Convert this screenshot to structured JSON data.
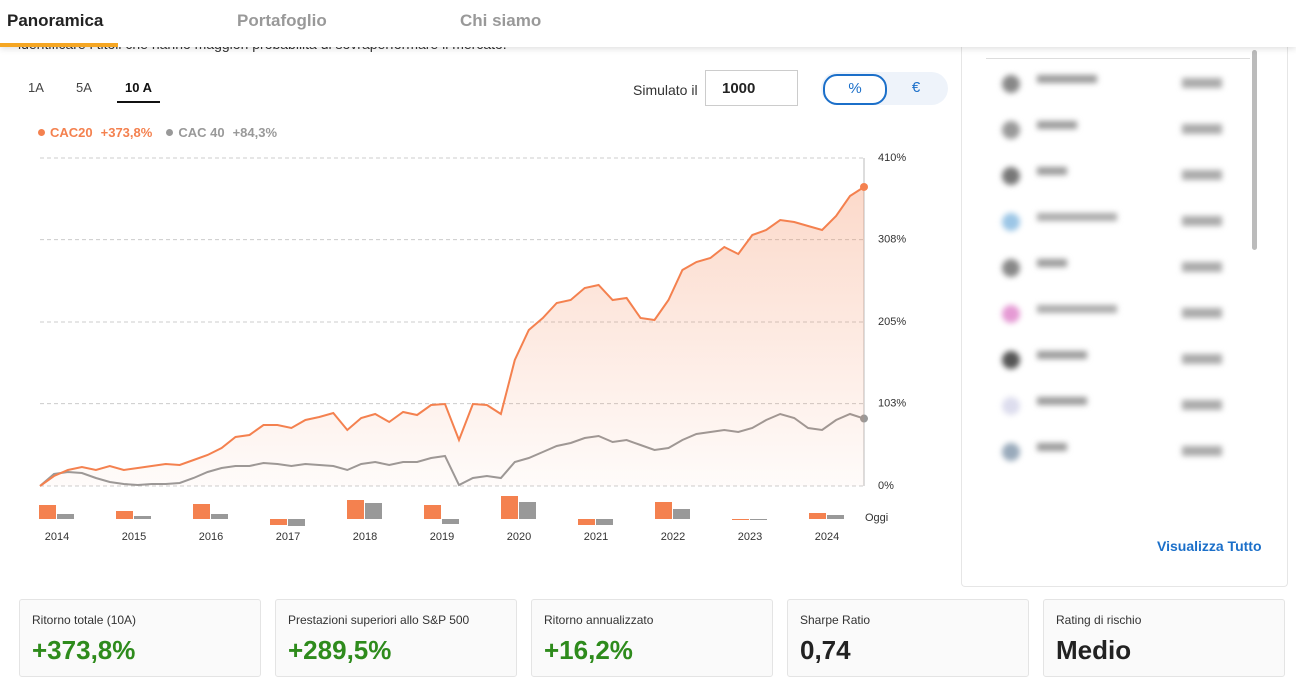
{
  "tabs": [
    "Panoramica",
    "Portafoglio",
    "Chi siamo"
  ],
  "intro_text": "identificare i titoli che hanno maggiori probabilità di sovraperformare il mercato.",
  "periods": [
    "1A",
    "5A",
    "10 A"
  ],
  "simulate_label": "Simulato il",
  "simulate_value": "1000",
  "toggle": [
    "%",
    "€"
  ],
  "chart_data": [
    {
      "type": "line",
      "ylim": [
        0,
        410
      ],
      "yticks": [
        {
          "value": 0,
          "label": "0%"
        },
        {
          "value": 103,
          "label": "103%"
        },
        {
          "value": 205,
          "label": "205%"
        },
        {
          "value": 308,
          "label": "308%"
        },
        {
          "value": 410,
          "label": "410%"
        }
      ],
      "grid": true,
      "series": [
        {
          "name": "CAC20",
          "return_label": "+373,8%",
          "color": "#f4814f",
          "values": [
            0,
            12.5,
            20,
            23.8,
            20,
            25,
            20,
            22.5,
            25,
            27.5,
            26.3,
            32.5,
            38.8,
            47.5,
            61.3,
            63.8,
            76.3,
            76.3,
            72.5,
            82.5,
            86.3,
            91.3,
            70,
            85,
            90,
            80,
            92.5,
            88.8,
            101.3,
            102.5,
            57.5,
            102.5,
            101.3,
            90,
            157.5,
            195,
            210,
            228.8,
            232.5,
            247.5,
            251.3,
            232.5,
            235,
            210,
            207.5,
            232.5,
            270,
            280,
            285,
            298.8,
            290,
            313.8,
            320,
            332.5,
            330,
            325,
            320,
            337.5,
            362.5,
            373.8
          ]
        },
        {
          "name": "CAC 40",
          "return_label": "+84,3%",
          "color": "#999999",
          "values": [
            0,
            15,
            17.5,
            16.3,
            10,
            5,
            2.5,
            1.3,
            2.5,
            2.5,
            3.8,
            10,
            17.5,
            22.5,
            25,
            25,
            28.8,
            27.5,
            25,
            27.5,
            26.3,
            25,
            20,
            27.5,
            30,
            26.3,
            30,
            30,
            35,
            37.5,
            1.3,
            10,
            12.5,
            10,
            30,
            35,
            42.5,
            50,
            53.8,
            60,
            62.5,
            55,
            57.5,
            51.3,
            45,
            47.5,
            57.5,
            65,
            67.5,
            70,
            67.5,
            72.5,
            82.5,
            90,
            85,
            72.5,
            70,
            82.5,
            90,
            84.3
          ]
        }
      ]
    },
    {
      "type": "bar",
      "categories": [
        "2014",
        "2015",
        "2016",
        "2017",
        "2018",
        "2019",
        "2020",
        "2021",
        "2022",
        "2023",
        "2024"
      ],
      "today_label": "Oggi",
      "series": [
        {
          "name": "CAC20",
          "color": "#f4814f",
          "values": [
            28,
            16,
            30,
            -12,
            38,
            28,
            46,
            -12,
            34,
            -2,
            12
          ]
        },
        {
          "name": "CAC 40",
          "color": "#999999",
          "values": [
            10,
            6,
            10,
            -14,
            32,
            -10,
            34,
            -12,
            20,
            -2,
            8
          ]
        }
      ]
    }
  ],
  "link_text": "Visualizza Tutto",
  "stats": [
    {
      "label": "Ritorno totale (10A)",
      "value": "+373,8%"
    },
    {
      "label": "Prestazioni superiori allo S&P 500",
      "value": "+289,5%"
    },
    {
      "label": "Ritorno annualizzato",
      "value": "+16,2%"
    },
    {
      "label": "Sharpe Ratio",
      "value": "0,74"
    },
    {
      "label": "Rating di rischio",
      "value": "Medio"
    }
  ]
}
